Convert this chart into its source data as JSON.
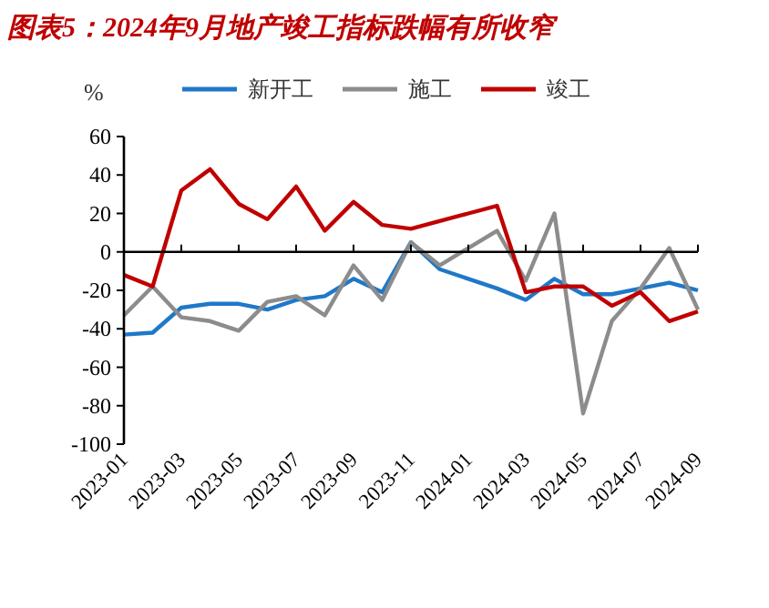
{
  "chart_data": {
    "type": "line",
    "title": "图表5：2024年9月地产竣工指标跌幅有所收窄",
    "ylabel": "%",
    "categories": [
      "2023-01",
      null,
      "2023-03",
      null,
      "2023-05",
      null,
      "2023-07",
      null,
      "2023-09",
      null,
      "2023-11",
      null,
      "2024-01",
      null,
      "2024-03",
      null,
      "2024-05",
      null,
      "2024-07",
      null,
      "2024-09"
    ],
    "series": [
      {
        "name": "新开工",
        "color": "#1f78c8",
        "values": [
          -43,
          -42,
          -29,
          -27,
          -27,
          -30,
          -25,
          -23,
          -14,
          -21,
          5,
          -9,
          -14,
          -19,
          -25,
          -14,
          -22,
          -22,
          -19,
          -16,
          -20
        ]
      },
      {
        "name": "施工",
        "color": "#8c8c8c",
        "values": [
          -33,
          -18,
          -34,
          -36,
          -41,
          -26,
          -23,
          -33,
          -7,
          -25,
          5,
          -7,
          2,
          11,
          -15,
          20,
          -84,
          -36,
          -19,
          2,
          -30
        ]
      },
      {
        "name": "竣工",
        "color": "#c00000",
        "values": [
          -12,
          -18,
          32,
          43,
          25,
          17,
          34,
          11,
          26,
          14,
          12,
          16,
          20,
          24,
          -21,
          -18,
          -18,
          -28,
          -21,
          -36,
          -31
        ]
      }
    ],
    "ylim": [
      -100,
      60
    ],
    "yticks": [
      -100,
      -80,
      -60,
      -40,
      -20,
      0,
      20,
      40,
      60
    ],
    "legend": "top",
    "marker": "none",
    "line_style": "solid"
  }
}
